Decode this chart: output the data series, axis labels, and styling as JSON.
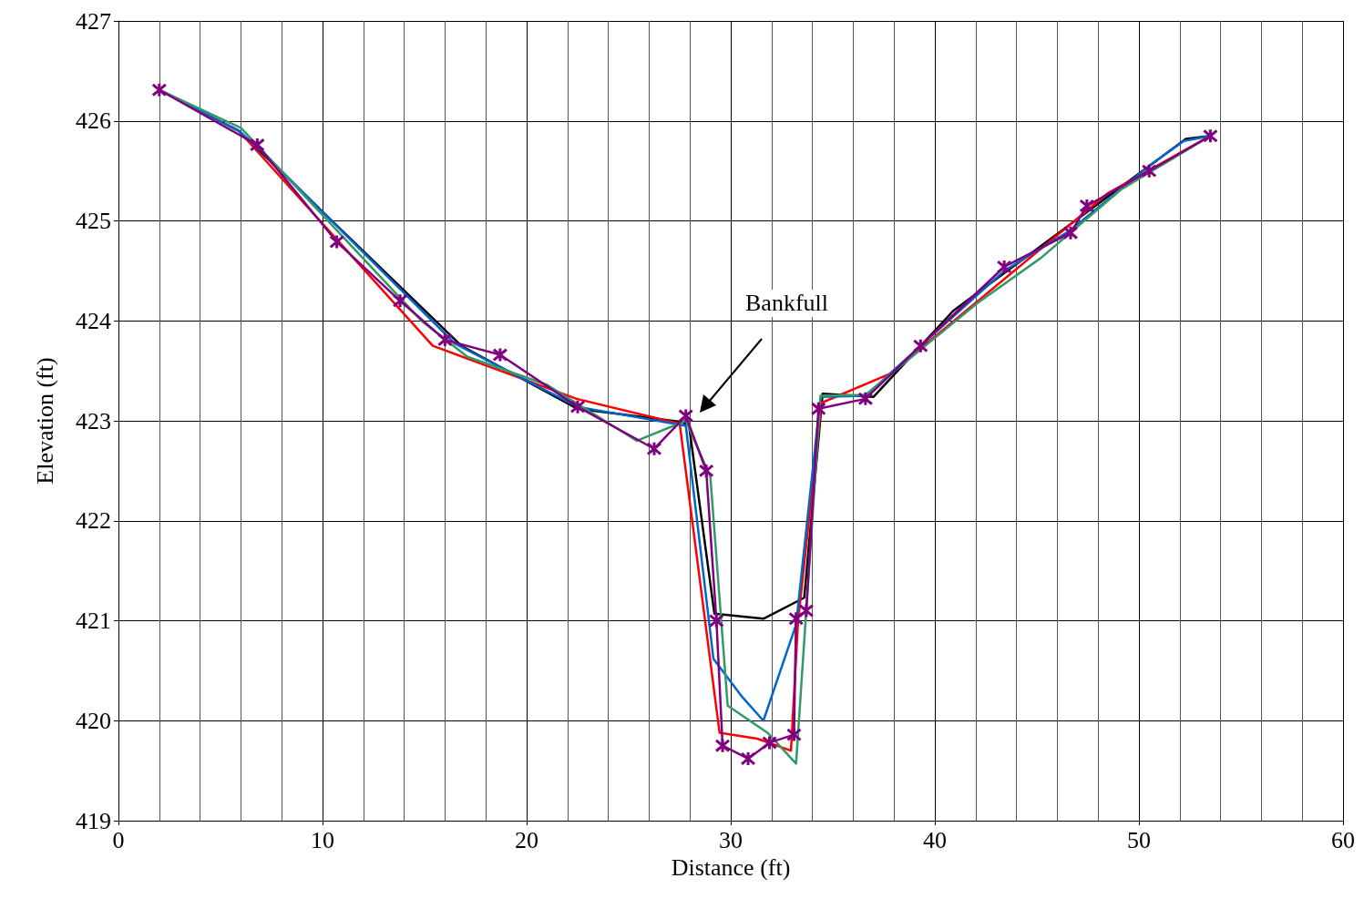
{
  "chart_data": {
    "type": "line",
    "xlabel": "Distance (ft)",
    "ylabel": "Elevation (ft)",
    "xlim": [
      0,
      60
    ],
    "xticks": [
      0,
      10,
      20,
      30,
      40,
      50,
      60
    ],
    "ylim": [
      419,
      427
    ],
    "yticks": [
      419,
      420,
      421,
      422,
      423,
      424,
      425,
      426,
      427
    ],
    "grid": true,
    "line_style": "solid",
    "annotations": [
      "Bankfull"
    ],
    "series": [
      {
        "color": "#000000",
        "x": [
          2.0,
          5.9,
          16.8,
          22.5,
          27.5,
          27.95,
          29.2,
          31.6,
          33.6,
          34.5,
          37.0,
          40.9,
          52.3,
          53.5
        ],
        "values": [
          426.31,
          425.9,
          423.75,
          423.12,
          422.99,
          422.96,
          421.07,
          421.02,
          421.23,
          423.27,
          423.24,
          424.1,
          425.82,
          425.85
        ]
      },
      {
        "color": "#ff0000",
        "x": [
          2.0,
          5.9,
          15.4,
          22.45,
          27.5,
          29.45,
          31.3,
          32.95,
          33.3,
          34.45,
          37.8,
          48.5,
          53.5
        ],
        "values": [
          426.31,
          425.9,
          423.75,
          423.22,
          422.97,
          419.88,
          419.82,
          419.7,
          421.0,
          423.18,
          423.47,
          425.28,
          425.85
        ]
      },
      {
        "color": "#0066cc",
        "x": [
          2.0,
          5.9,
          7.0,
          16.5,
          22.5,
          27.8,
          29.15,
          30.55,
          31.6,
          33.2,
          34.4,
          36.6,
          39.3,
          43.4,
          46.6,
          50.5,
          52.2,
          53.5
        ],
        "values": [
          426.31,
          425.9,
          425.7,
          423.77,
          423.14,
          422.95,
          420.62,
          420.24,
          420.0,
          420.96,
          423.24,
          423.25,
          423.75,
          424.5,
          424.9,
          425.55,
          425.8,
          425.85
        ]
      },
      {
        "color": "#339966",
        "x": [
          2.0,
          6.0,
          14.9,
          17.1,
          21.0,
          25.4,
          27.8,
          29.0,
          29.85,
          31.8,
          33.2,
          34.4,
          36.6,
          42.1,
          45.2,
          49.1,
          53.5
        ],
        "values": [
          426.31,
          425.93,
          423.99,
          423.64,
          423.36,
          422.8,
          423.0,
          422.44,
          420.15,
          419.88,
          419.57,
          423.25,
          423.26,
          424.18,
          424.63,
          425.31,
          425.85
        ]
      },
      {
        "color": "#800080",
        "marker": "cross",
        "x": [
          2.0,
          6.8,
          10.7,
          13.8,
          16.0,
          18.7,
          22.5,
          26.25,
          27.8,
          28.8,
          29.3,
          29.6,
          30.85,
          31.9,
          33.1,
          33.2,
          33.7,
          34.3,
          36.6,
          39.3,
          43.4,
          46.65,
          47.45,
          50.5,
          53.5
        ],
        "values": [
          426.31,
          425.76,
          424.79,
          424.2,
          423.81,
          423.66,
          423.14,
          422.72,
          423.05,
          422.5,
          421.0,
          419.75,
          419.62,
          419.78,
          419.86,
          421.02,
          421.1,
          423.12,
          423.22,
          423.75,
          424.54,
          424.88,
          425.15,
          425.5,
          425.85
        ]
      }
    ]
  }
}
